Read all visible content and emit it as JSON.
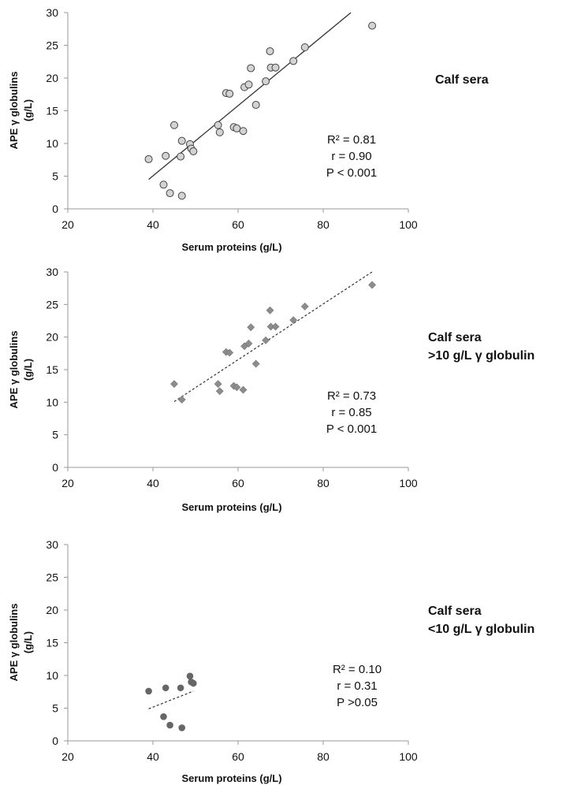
{
  "chart_data": [
    {
      "type": "scatter",
      "title": "",
      "panel_label_lines": [
        "Calf sera"
      ],
      "xlabel": "Serum proteins (g/L)",
      "ylabel_lines": [
        "APE γ globulins",
        "(g/L)"
      ],
      "xlim": [
        20,
        100
      ],
      "ylim": [
        0,
        30
      ],
      "xticks": [
        "20",
        "40",
        "60",
        "80",
        "100"
      ],
      "yticks": [
        "0",
        "5",
        "10",
        "15",
        "20",
        "25",
        "30"
      ],
      "marker": "circle-open",
      "marker_color": "#d3d3d3",
      "trendline": {
        "style": "solid",
        "x": [
          39,
          86.5
        ],
        "y": [
          4.5,
          30
        ]
      },
      "stats": [
        "R² = 0.81",
        "r = 0.90",
        "P < 0.001"
      ],
      "points": [
        {
          "x": 39,
          "y": 7.6
        },
        {
          "x": 42.5,
          "y": 3.7
        },
        {
          "x": 43,
          "y": 8.1
        },
        {
          "x": 44,
          "y": 2.4
        },
        {
          "x": 45,
          "y": 12.8
        },
        {
          "x": 46.5,
          "y": 8.0
        },
        {
          "x": 46.8,
          "y": 10.4
        },
        {
          "x": 46.8,
          "y": 2.0
        },
        {
          "x": 48.7,
          "y": 9.9
        },
        {
          "x": 49,
          "y": 9.2
        },
        {
          "x": 49.5,
          "y": 8.8
        },
        {
          "x": 55.3,
          "y": 12.8
        },
        {
          "x": 55.7,
          "y": 11.7
        },
        {
          "x": 57.2,
          "y": 17.7
        },
        {
          "x": 58,
          "y": 17.6
        },
        {
          "x": 59,
          "y": 12.5
        },
        {
          "x": 59.7,
          "y": 12.3
        },
        {
          "x": 61.2,
          "y": 11.9
        },
        {
          "x": 61.5,
          "y": 18.6
        },
        {
          "x": 62.5,
          "y": 19.0
        },
        {
          "x": 63,
          "y": 21.5
        },
        {
          "x": 64.2,
          "y": 15.9
        },
        {
          "x": 66.5,
          "y": 19.5
        },
        {
          "x": 67.5,
          "y": 24.1
        },
        {
          "x": 67.7,
          "y": 21.6
        },
        {
          "x": 68.8,
          "y": 21.6
        },
        {
          "x": 73,
          "y": 22.6
        },
        {
          "x": 75.7,
          "y": 24.7
        },
        {
          "x": 91.5,
          "y": 28.0
        }
      ]
    },
    {
      "type": "scatter",
      "title": "",
      "panel_label_lines": [
        "Calf sera",
        ">10 g/L γ globulin"
      ],
      "xlabel": "Serum proteins (g/L)",
      "ylabel_lines": [
        "APE γ globulins",
        "(g/L)"
      ],
      "xlim": [
        20,
        100
      ],
      "ylim": [
        0,
        30
      ],
      "xticks": [
        "20",
        "40",
        "60",
        "80",
        "100"
      ],
      "yticks": [
        "0",
        "5",
        "10",
        "15",
        "20",
        "25",
        "30"
      ],
      "marker": "diamond",
      "marker_color": "#8c8c8c",
      "trendline": {
        "style": "dashed",
        "x": [
          45,
          91.5
        ],
        "y": [
          10.1,
          30
        ]
      },
      "stats": [
        "R² = 0.73",
        "r = 0.85",
        "P < 0.001"
      ],
      "points": [
        {
          "x": 45,
          "y": 12.8
        },
        {
          "x": 46.8,
          "y": 10.4
        },
        {
          "x": 55.3,
          "y": 12.8
        },
        {
          "x": 55.7,
          "y": 11.7
        },
        {
          "x": 57.2,
          "y": 17.7
        },
        {
          "x": 58,
          "y": 17.6
        },
        {
          "x": 59,
          "y": 12.5
        },
        {
          "x": 59.7,
          "y": 12.3
        },
        {
          "x": 61.2,
          "y": 11.9
        },
        {
          "x": 61.5,
          "y": 18.6
        },
        {
          "x": 62.5,
          "y": 19.0
        },
        {
          "x": 63,
          "y": 21.5
        },
        {
          "x": 64.2,
          "y": 15.9
        },
        {
          "x": 66.5,
          "y": 19.5
        },
        {
          "x": 67.5,
          "y": 24.1
        },
        {
          "x": 67.7,
          "y": 21.6
        },
        {
          "x": 68.8,
          "y": 21.6
        },
        {
          "x": 73,
          "y": 22.6
        },
        {
          "x": 75.7,
          "y": 24.7
        },
        {
          "x": 91.5,
          "y": 28.0
        }
      ]
    },
    {
      "type": "scatter",
      "title": "",
      "panel_label_lines": [
        "Calf sera",
        "<10 g/L γ globulin"
      ],
      "xlabel": "Serum proteins (g/L)",
      "ylabel_lines": [
        "APE γ globulins",
        "(g/L)"
      ],
      "xlim": [
        20,
        100
      ],
      "ylim": [
        0,
        30
      ],
      "xticks": [
        "20",
        "40",
        "60",
        "80",
        "100"
      ],
      "yticks": [
        "0",
        "5",
        "10",
        "15",
        "20",
        "25",
        "30"
      ],
      "marker": "circle-filled",
      "marker_color": "#666666",
      "trendline": {
        "style": "dashed",
        "x": [
          39,
          49.5
        ],
        "y": [
          4.9,
          7.6
        ]
      },
      "stats": [
        "R² = 0.10",
        "r = 0.31",
        "P  >0.05"
      ],
      "points": [
        {
          "x": 39,
          "y": 7.6
        },
        {
          "x": 42.5,
          "y": 3.7
        },
        {
          "x": 43,
          "y": 8.1
        },
        {
          "x": 44,
          "y": 2.4
        },
        {
          "x": 46.5,
          "y": 8.1
        },
        {
          "x": 46.8,
          "y": 2.0
        },
        {
          "x": 48.7,
          "y": 9.9
        },
        {
          "x": 49,
          "y": 9.0
        },
        {
          "x": 49.5,
          "y": 8.8
        }
      ]
    }
  ]
}
